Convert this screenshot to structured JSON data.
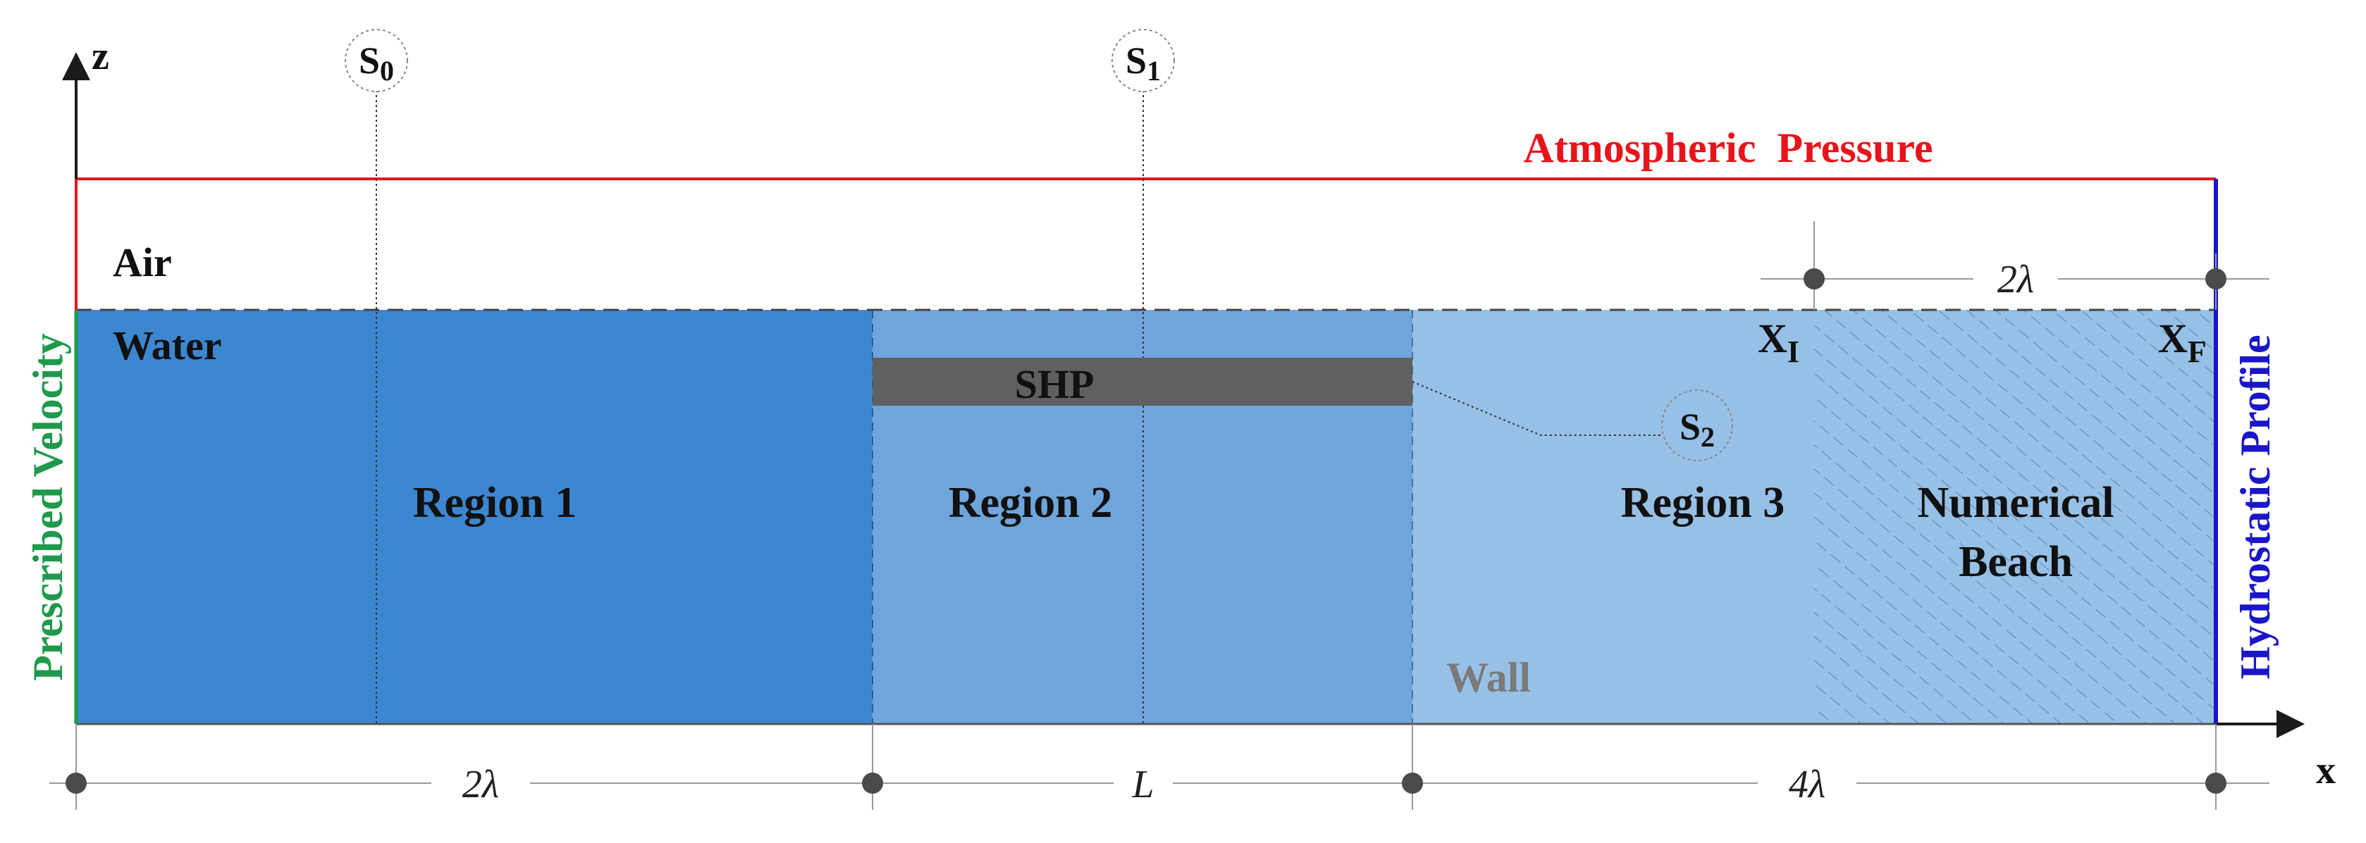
{
  "axes": {
    "z_label": "z",
    "x_label": "x"
  },
  "labels": {
    "atmospheric": "Atmospheric  Pressure",
    "prescribed": "Prescribed Velocity",
    "hydrostatic": "Hydrostatic Profile",
    "air": "Air",
    "water": "Water",
    "shp": "SHP",
    "wall": "Wall",
    "beach_line1": "Numerical",
    "beach_line2": "Beach"
  },
  "regions": [
    {
      "label": "Region 1",
      "color": "#3d87d1"
    },
    {
      "label": "Region 2",
      "color": "#6ea6dc"
    },
    {
      "label": "Region 3",
      "color": "#97c0e6"
    }
  ],
  "sections": {
    "s0": {
      "base": "S",
      "sub": "0"
    },
    "s1": {
      "base": "S",
      "sub": "1"
    },
    "s2": {
      "base": "S",
      "sub": "2"
    }
  },
  "points": {
    "xi": {
      "base": "X",
      "sub": "I"
    },
    "xf": {
      "base": "X",
      "sub": "F"
    }
  },
  "dimensions": {
    "region1": "2λ",
    "region2": "L",
    "region3": "4λ",
    "beach": "2λ"
  },
  "colors": {
    "atmospheric": "#e8141c",
    "prescribed": "#1f9a4c",
    "hydrostatic": "#1a16c8",
    "shp": "#606060",
    "wall": "#7a7a7a"
  }
}
